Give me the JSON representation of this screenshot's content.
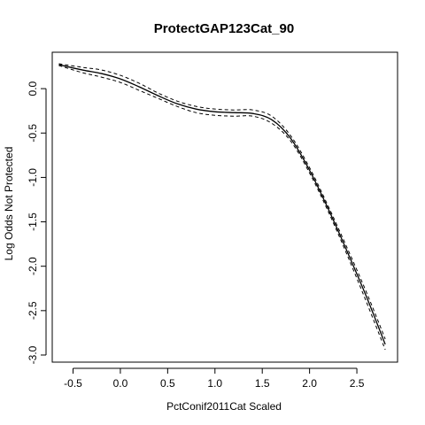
{
  "chart_data": {
    "type": "line",
    "title": "ProtectGAP123Cat_90",
    "xlabel": "PctConif2011Cat Scaled",
    "ylabel": "Log Odds Not Protected",
    "xlim": [
      -0.72,
      2.93
    ],
    "ylim": [
      -3.08,
      0.41
    ],
    "xticks": [
      -0.5,
      0.0,
      0.5,
      1.0,
      1.5,
      2.0,
      2.5
    ],
    "xtick_labels": [
      "-0.5",
      "0.0",
      "0.5",
      "1.0",
      "1.5",
      "2.0",
      "2.5"
    ],
    "yticks": [
      0.0,
      -0.5,
      -1.0,
      -1.5,
      -2.0,
      -2.5,
      -3.0
    ],
    "ytick_labels": [
      "0.0",
      "-0.5",
      "-1.0",
      "-1.5",
      "-2.0",
      "-2.5",
      "-3.0"
    ],
    "grid": false,
    "series": [
      {
        "style": "solid",
        "x": [
          -0.65,
          -0.4,
          -0.2,
          0.0,
          0.2,
          0.4,
          0.6,
          0.8,
          1.0,
          1.2,
          1.4,
          1.6,
          1.8,
          2.0,
          2.2,
          2.4,
          2.6,
          2.8
        ],
        "y": [
          0.27,
          0.21,
          0.17,
          0.11,
          0.02,
          -0.08,
          -0.17,
          -0.23,
          -0.26,
          -0.27,
          -0.28,
          -0.35,
          -0.56,
          -0.92,
          -1.36,
          -1.84,
          -2.34,
          -2.88
        ]
      },
      {
        "style": "dashed",
        "x": [
          -0.65,
          -0.4,
          -0.2,
          0.0,
          0.2,
          0.4,
          0.6,
          0.8,
          1.0,
          1.2,
          1.4,
          1.6,
          1.8,
          2.0,
          2.2,
          2.4,
          2.6,
          2.8
        ],
        "y": [
          0.28,
          0.24,
          0.21,
          0.15,
          0.06,
          -0.05,
          -0.14,
          -0.2,
          -0.23,
          -0.24,
          -0.24,
          -0.31,
          -0.53,
          -0.89,
          -1.33,
          -1.8,
          -2.29,
          -2.82
        ]
      },
      {
        "style": "dashed",
        "x": [
          -0.65,
          -0.4,
          -0.2,
          0.0,
          0.2,
          0.4,
          0.6,
          0.8,
          1.0,
          1.2,
          1.4,
          1.6,
          1.8,
          2.0,
          2.2,
          2.4,
          2.6,
          2.8
        ],
        "y": [
          0.26,
          0.18,
          0.13,
          0.07,
          -0.02,
          -0.11,
          -0.2,
          -0.27,
          -0.3,
          -0.31,
          -0.31,
          -0.39,
          -0.59,
          -0.95,
          -1.39,
          -1.88,
          -2.4,
          -2.94
        ]
      }
    ]
  }
}
